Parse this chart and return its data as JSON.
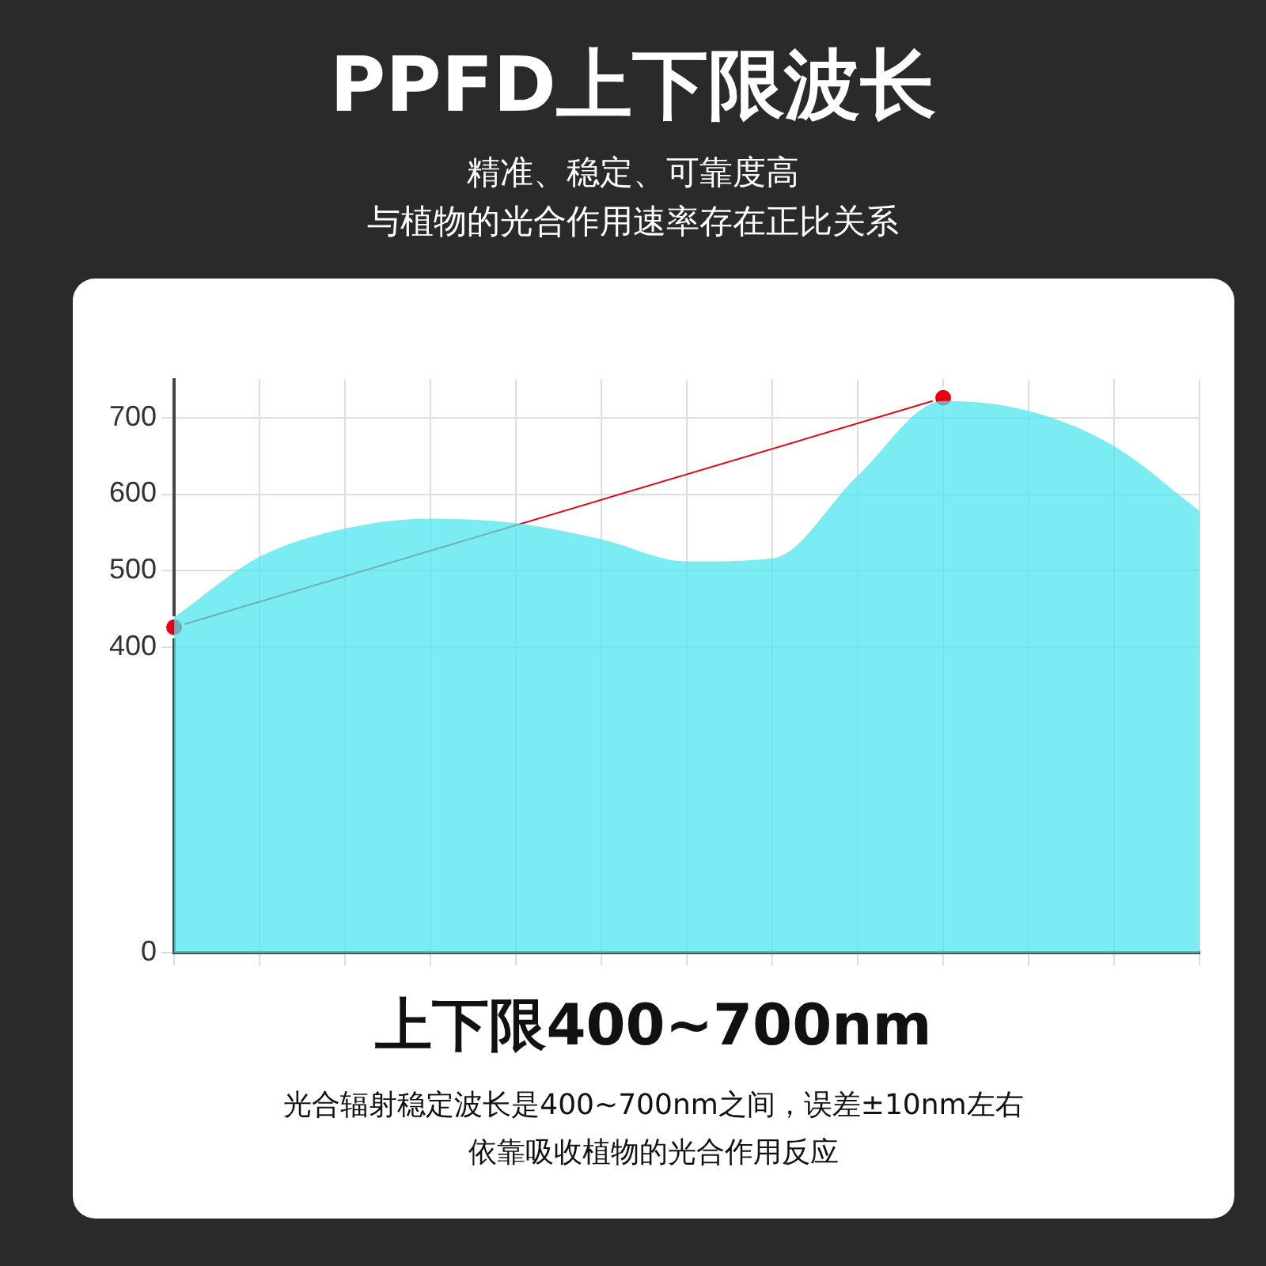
{
  "chart_data": {
    "type": "area",
    "title": "PPFD上下限波长",
    "subtitle": "精准、稳定、可靠度高",
    "categories": [
      null,
      null,
      null,
      null,
      null,
      null,
      null,
      null,
      null,
      null,
      null,
      null,
      null
    ],
    "series": [
      {
        "color": "#4fe6ee",
        "values": [
          439,
          518,
          555,
          568,
          562,
          541,
          512,
          516,
          624,
          722,
          709,
          663,
          578
        ],
        "marker": "none"
      },
      {
        "type": "line",
        "color": "#e60012",
        "values": [
          426,
          null,
          null,
          null,
          null,
          null,
          null,
          null,
          null,
          726,
          null,
          null,
          null
        ],
        "marker": "circle"
      }
    ],
    "ylim": [
      0,
      750
    ],
    "yticks": [
      0,
      400,
      500,
      600,
      700
    ],
    "tick_labels": "y",
    "grid": true,
    "legend": false,
    "annotations": [
      "与植物的光合作用速率存在正比关系",
      "上下限400~700nm",
      "光合辐射稳定波长是400~700nm之间，误差±10nm左右",
      "依靠吸收植物的光合作用反应"
    ]
  }
}
